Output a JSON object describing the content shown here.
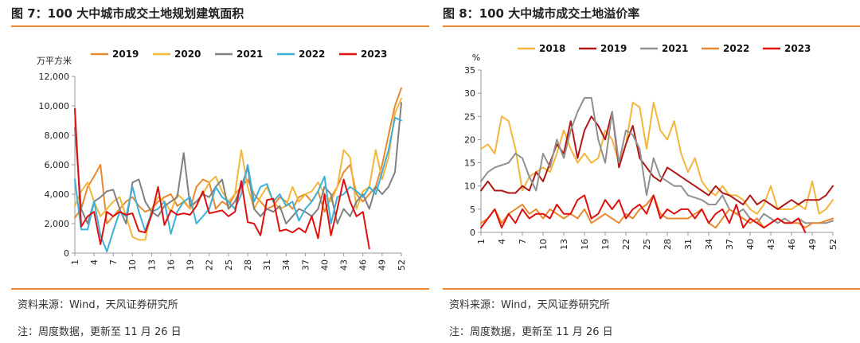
{
  "left": {
    "title": "图 7：100 大中城市成交土地规划建筑面积",
    "source": "资料来源：Wind，天风证券研究所",
    "note": "注：周度数据，更新至 11 月 26 日"
  },
  "right": {
    "title": "图 8：100 大中城市成交土地溢价率",
    "source": "资料来源：Wind，天风证券研究所",
    "note": "注：周度数据，更新至 11 月 26 日"
  },
  "chart_data": [
    {
      "type": "line",
      "title": "图 7：100 大中城市成交土地规划建筑面积",
      "ylabel": "万平方米",
      "ylim": [
        0,
        12000
      ],
      "yticks": [
        "0",
        "2,000",
        "4,000",
        "6,000",
        "8,000",
        "10,000",
        "12,000"
      ],
      "yticks_values": [
        0,
        2000,
        4000,
        6000,
        8000,
        10000,
        12000
      ],
      "xlim": [
        1,
        52
      ],
      "xticks": [
        1,
        4,
        7,
        10,
        13,
        16,
        19,
        22,
        25,
        28,
        31,
        34,
        37,
        40,
        43,
        46,
        49,
        52
      ],
      "legend_position": "top",
      "series": [
        {
          "name": "2019",
          "color": "#e8892f",
          "values": [
            2400,
            3000,
            4500,
            5200,
            6000,
            2000,
            2500,
            3000,
            3500,
            3800,
            3200,
            2800,
            3000,
            3500,
            3800,
            4000,
            3200,
            3500,
            3000,
            4500,
            5000,
            4800,
            3000,
            3500,
            3200,
            4000,
            4500,
            5000,
            4000,
            3500,
            3000,
            3200,
            3800,
            3500,
            3000,
            3800,
            4000,
            3500,
            4200,
            2800,
            3800,
            4500,
            5500,
            6000,
            4000,
            3500,
            4000,
            4500,
            6000,
            8000,
            10000,
            11200
          ]
        },
        {
          "name": "2020",
          "color": "#f2b63c",
          "values": [
            3200,
            4200,
            4800,
            3500,
            2500,
            3000,
            3500,
            3800,
            2500,
            1100,
            900,
            900,
            3000,
            3800,
            3500,
            2800,
            4000,
            3600,
            3000,
            3500,
            4000,
            4800,
            5200,
            4200,
            3500,
            4000,
            7000,
            4500,
            3000,
            3800,
            4500,
            3500,
            3000,
            3200,
            4500,
            3500,
            4000,
            4200,
            4800,
            4000,
            3500,
            4500,
            7000,
            6500,
            3000,
            4200,
            4500,
            7000,
            5000,
            6500,
            9500,
            10500
          ]
        },
        {
          "name": "2021",
          "color": "#808080",
          "values": [
            8500,
            3000,
            2000,
            3500,
            3800,
            4200,
            4300,
            3000,
            2000,
            4800,
            5000,
            3500,
            2800,
            2500,
            3200,
            3500,
            3800,
            6800,
            3200,
            3500,
            4000,
            3800,
            4500,
            5000,
            3000,
            3500,
            4500,
            5800,
            3000,
            2500,
            3000,
            2800,
            3200,
            2000,
            2500,
            3000,
            2800,
            2500,
            3000,
            4500,
            4000,
            2000,
            3000,
            2500,
            3500,
            4000,
            3000,
            4500,
            4000,
            4500,
            5500,
            10200
          ]
        },
        {
          "name": "2022",
          "color": "#3cb0d8",
          "values": [
            5000,
            1600,
            1600,
            3500,
            1200,
            100,
            1500,
            2800,
            2500,
            4500,
            2800,
            1500,
            2800,
            3000,
            3500,
            1300,
            2800,
            3500,
            3800,
            2000,
            2500,
            3000,
            4500,
            3800,
            3500,
            3000,
            4000,
            6000,
            3500,
            4500,
            4700,
            3500,
            4000,
            3200,
            3500,
            2200,
            3000,
            3500,
            4200,
            5200,
            2000,
            3800,
            4000,
            4500,
            4200,
            3800,
            4500,
            4000,
            5500,
            7000,
            9200,
            9000
          ]
        },
        {
          "name": "2023",
          "color": "#e01010",
          "values": [
            9800,
            1800,
            2500,
            2800,
            600,
            2800,
            2500,
            2800,
            2600,
            2700,
            1500,
            1400,
            2600,
            4500,
            1900,
            2900,
            2600,
            2700,
            2600,
            3200,
            4200,
            2700,
            2800,
            2900,
            2500,
            2800,
            4900,
            2100,
            2000,
            1200,
            3600,
            3700,
            1500,
            1600,
            1400,
            1700,
            1400,
            2500,
            1000,
            4000,
            1200,
            3000,
            5000,
            3500,
            2500,
            2800,
            300
          ]
        }
      ]
    },
    {
      "type": "line",
      "title": "图 8：100 大中城市成交土地溢价率",
      "ylabel": "%",
      "ylim": [
        0,
        35
      ],
      "yticks": [
        "0",
        "5",
        "10",
        "15",
        "20",
        "25",
        "30",
        "35"
      ],
      "yticks_values": [
        0,
        5,
        10,
        15,
        20,
        25,
        30,
        35
      ],
      "xlim": [
        1,
        52
      ],
      "xticks": [
        1,
        4,
        7,
        10,
        13,
        16,
        19,
        22,
        25,
        28,
        31,
        34,
        37,
        40,
        43,
        46,
        49,
        52
      ],
      "legend_position": "top",
      "series": [
        {
          "name": "2018",
          "color": "#f2b63c",
          "values": [
            18,
            19,
            17,
            25,
            24,
            18,
            9,
            12,
            13,
            14,
            13,
            17,
            22,
            18,
            15,
            17,
            15,
            16,
            22,
            20,
            15,
            19,
            28,
            27,
            18,
            28,
            22,
            20,
            24,
            17,
            13,
            16,
            11,
            9,
            8,
            10,
            8,
            8,
            7,
            5,
            4,
            6,
            10,
            5,
            5,
            5,
            6,
            5,
            11,
            4,
            5,
            7
          ]
        },
        {
          "name": "2019",
          "color": "#b01818",
          "values": [
            9,
            11,
            9,
            9,
            8.5,
            8.5,
            10,
            9,
            13,
            11,
            15,
            19,
            17,
            24,
            16,
            22,
            25,
            23,
            20,
            26,
            14,
            19,
            23,
            16,
            14,
            12,
            11,
            14,
            13,
            12,
            11,
            10,
            9,
            8,
            10,
            8.5,
            8,
            7,
            6,
            8,
            6,
            7,
            6,
            5,
            6,
            7,
            6,
            7,
            7,
            7,
            8,
            10
          ]
        },
        {
          "name": "2021",
          "color": "#909090",
          "values": [
            11,
            13,
            14,
            14.5,
            15,
            17,
            16,
            12,
            9,
            17,
            14,
            20,
            16,
            22,
            26,
            29,
            29,
            20,
            15,
            26,
            15,
            22,
            21,
            18,
            8,
            16,
            12,
            11,
            10,
            10,
            8,
            7.5,
            7,
            6,
            6,
            8,
            5,
            4,
            5,
            3,
            2,
            4,
            3,
            2,
            3,
            2,
            3,
            2,
            2,
            2,
            2,
            2.5
          ]
        },
        {
          "name": "2022",
          "color": "#e8892f",
          "values": [
            2,
            3,
            5,
            2,
            4,
            5,
            6,
            4,
            5,
            3,
            5,
            4,
            3,
            4,
            3,
            5,
            2,
            3,
            4,
            3,
            2,
            4,
            3,
            5,
            6,
            8,
            4,
            3,
            3,
            3,
            3,
            4,
            5,
            2,
            1,
            3,
            5,
            4,
            3,
            2,
            3,
            1,
            2,
            3,
            2,
            2,
            2,
            1,
            2,
            2,
            2.5,
            3
          ]
        },
        {
          "name": "2023",
          "color": "#e01010",
          "values": [
            1,
            3,
            5,
            1,
            4,
            2,
            5,
            3,
            4,
            4,
            3,
            6,
            4,
            4,
            7,
            8,
            3,
            4,
            7,
            5,
            7,
            3,
            5,
            6,
            4,
            8,
            3,
            5,
            4,
            5,
            5,
            3,
            5,
            2,
            4,
            5,
            2,
            6,
            1,
            3,
            2,
            1,
            2,
            3,
            2,
            2,
            3,
            0
          ]
        }
      ]
    }
  ]
}
